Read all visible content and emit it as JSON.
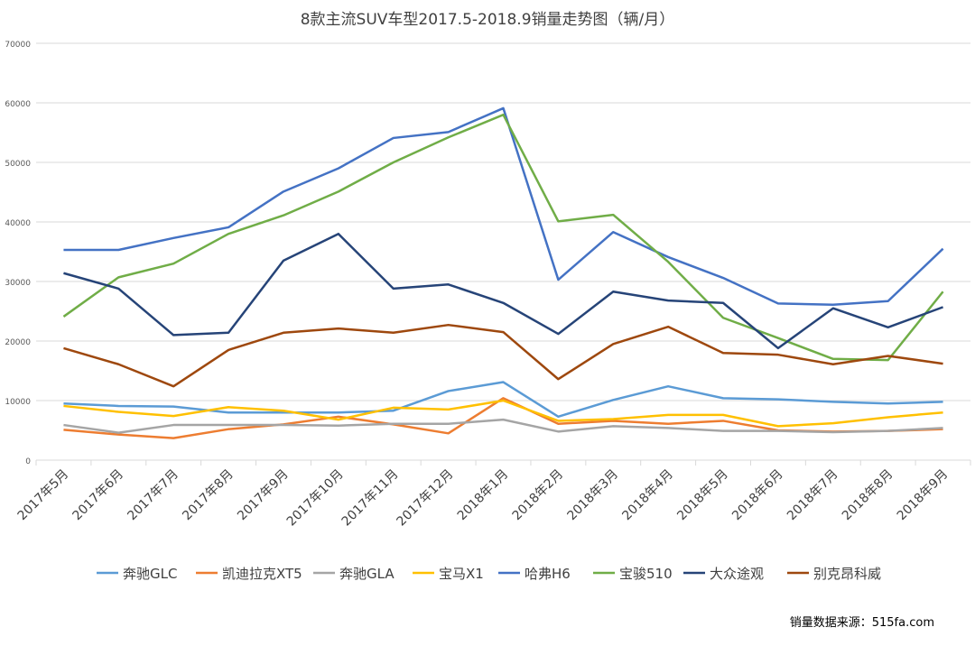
{
  "chart_data": {
    "type": "line",
    "title": "8款主流SUV车型2017.5-2018.9销量走势图（辆/月）",
    "xlabel": "",
    "ylabel": "",
    "ylim": [
      0,
      70000
    ],
    "yticks": [
      "0",
      "10000",
      "20000",
      "30000",
      "40000",
      "50000",
      "60000",
      "70000"
    ],
    "grid": true,
    "legend_position": "bottom",
    "categories": [
      "2017年5月",
      "2017年6月",
      "2017年7月",
      "2017年8月",
      "2017年9月",
      "2017年10月",
      "2017年11月",
      "2017年12月",
      "2018年1月",
      "2018年2月",
      "2018年3月",
      "2018年4月",
      "2018年5月",
      "2018年6月",
      "2018年7月",
      "2018年8月",
      "2018年9月"
    ],
    "series": [
      {
        "name": "奔驰GLC",
        "color": "#5B9BD5",
        "values": [
          9500,
          9100,
          9000,
          8000,
          8000,
          8000,
          8300,
          11600,
          13100,
          7300,
          10100,
          12400,
          10400,
          10200,
          9800,
          9500,
          9800
        ]
      },
      {
        "name": "凯迪拉克XT5",
        "color": "#ED7D31",
        "values": [
          5100,
          4300,
          3700,
          5200,
          6000,
          7300,
          6000,
          4500,
          10400,
          6100,
          6600,
          6100,
          6600,
          5000,
          4800,
          4900,
          5200
        ]
      },
      {
        "name": "奔驰GLA",
        "color": "#A5A5A5",
        "values": [
          5900,
          4600,
          5900,
          5900,
          5900,
          5800,
          6100,
          6100,
          6800,
          4800,
          5700,
          5400,
          4900,
          4900,
          4700,
          4900,
          5400
        ]
      },
      {
        "name": "宝马X1",
        "color": "#FFC000",
        "values": [
          9100,
          8100,
          7400,
          8900,
          8300,
          6800,
          8800,
          8500,
          10000,
          6600,
          6900,
          7600,
          7600,
          5700,
          6200,
          7200,
          8000
        ]
      },
      {
        "name": "哈弗H6",
        "color": "#4472C4",
        "values": [
          35300,
          35300,
          37300,
          39100,
          45100,
          49000,
          54100,
          55100,
          59100,
          30300,
          38300,
          34100,
          30600,
          26300,
          26100,
          26700,
          35500
        ]
      },
      {
        "name": "宝骏510",
        "color": "#70AD47",
        "values": [
          24100,
          30700,
          33000,
          38000,
          41100,
          45100,
          50000,
          54200,
          58000,
          40100,
          41200,
          33300,
          23900,
          20500,
          17000,
          16800,
          28300
        ]
      },
      {
        "name": "大众途观",
        "color": "#264478",
        "values": [
          31400,
          28800,
          21000,
          21400,
          33500,
          38000,
          28800,
          29500,
          26400,
          21200,
          28300,
          26800,
          26400,
          18800,
          25500,
          22300,
          25700
        ]
      },
      {
        "name": "别克昂科威",
        "color": "#9E480E",
        "values": [
          18800,
          16100,
          12400,
          18500,
          21400,
          22100,
          21400,
          22700,
          21500,
          13600,
          19500,
          22400,
          18000,
          17700,
          16100,
          17500,
          16200
        ]
      }
    ],
    "source_note": "销量数据来源：515fa.com"
  }
}
